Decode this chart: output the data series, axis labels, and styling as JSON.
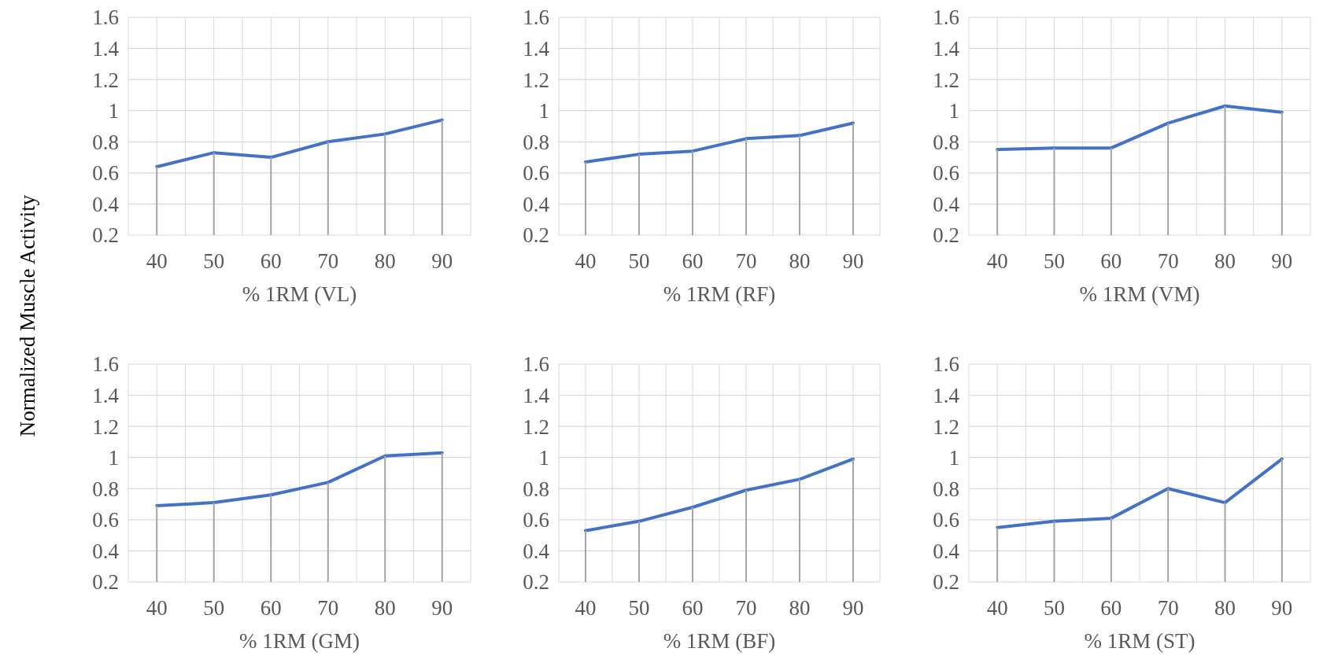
{
  "chart_data": [
    {
      "type": "line",
      "ylabel": "Normalized Muscle Activity",
      "xlabel": "% 1RM (VL)",
      "categories": [
        "40",
        "50",
        "60",
        "70",
        "80",
        "90"
      ],
      "series": [
        {
          "color": "#4472c4",
          "values": [
            0.64,
            0.73,
            0.7,
            0.8,
            0.85,
            0.94
          ]
        },
        {
          "type": "bar",
          "color": "#a6a6a6",
          "values": [
            0.64,
            0.73,
            0.7,
            0.8,
            0.85,
            0.94
          ]
        }
      ],
      "ylim": [
        0.2,
        1.6
      ],
      "yticks": [
        0.2,
        0.4,
        0.6,
        0.8,
        1,
        1.2,
        1.4,
        1.6
      ],
      "grid": true,
      "marker": "none",
      "line_style": "solid"
    },
    {
      "type": "line",
      "xlabel": "% 1RM (RF)",
      "categories": [
        "40",
        "50",
        "60",
        "70",
        "80",
        "90"
      ],
      "series": [
        {
          "color": "#4472c4",
          "values": [
            0.67,
            0.72,
            0.74,
            0.82,
            0.84,
            0.92
          ]
        },
        {
          "type": "bar",
          "color": "#a6a6a6",
          "values": [
            0.67,
            0.72,
            0.74,
            0.82,
            0.84,
            0.92
          ]
        }
      ],
      "ylim": [
        0.2,
        1.6
      ],
      "yticks": [
        0.2,
        0.4,
        0.6,
        0.8,
        1,
        1.2,
        1.4,
        1.6
      ],
      "grid": true,
      "marker": "none",
      "line_style": "solid"
    },
    {
      "type": "line",
      "xlabel": "% 1RM (VM)",
      "categories": [
        "40",
        "50",
        "60",
        "70",
        "80",
        "90"
      ],
      "series": [
        {
          "color": "#4472c4",
          "values": [
            0.75,
            0.76,
            0.76,
            0.92,
            1.03,
            0.99
          ]
        },
        {
          "type": "bar",
          "color": "#a6a6a6",
          "values": [
            0.75,
            0.76,
            0.76,
            0.92,
            1.03,
            0.99
          ]
        }
      ],
      "ylim": [
        0.2,
        1.6
      ],
      "yticks": [
        0.2,
        0.4,
        0.6,
        0.8,
        1,
        1.2,
        1.4,
        1.6
      ],
      "grid": true,
      "marker": "none",
      "line_style": "solid"
    },
    {
      "type": "line",
      "xlabel": "% 1RM (GM)",
      "categories": [
        "40",
        "50",
        "60",
        "70",
        "80",
        "90"
      ],
      "series": [
        {
          "color": "#4472c4",
          "values": [
            0.69,
            0.71,
            0.76,
            0.84,
            1.01,
            1.03
          ]
        },
        {
          "type": "bar",
          "color": "#a6a6a6",
          "values": [
            0.69,
            0.71,
            0.76,
            0.84,
            1.01,
            1.03
          ]
        }
      ],
      "ylim": [
        0.2,
        1.6
      ],
      "yticks": [
        0.2,
        0.4,
        0.6,
        0.8,
        1,
        1.2,
        1.4,
        1.6
      ],
      "grid": true,
      "marker": "none",
      "line_style": "solid"
    },
    {
      "type": "line",
      "xlabel": "% 1RM (BF)",
      "categories": [
        "40",
        "50",
        "60",
        "70",
        "80",
        "90"
      ],
      "series": [
        {
          "color": "#4472c4",
          "values": [
            0.53,
            0.59,
            0.68,
            0.79,
            0.86,
            0.99
          ]
        },
        {
          "type": "bar",
          "color": "#a6a6a6",
          "values": [
            0.53,
            0.59,
            0.68,
            0.79,
            0.86,
            0.99
          ]
        }
      ],
      "ylim": [
        0.2,
        1.6
      ],
      "yticks": [
        0.2,
        0.4,
        0.6,
        0.8,
        1,
        1.2,
        1.4,
        1.6
      ],
      "grid": true,
      "marker": "none",
      "line_style": "solid"
    },
    {
      "type": "line",
      "xlabel": "% 1RM (ST)",
      "categories": [
        "40",
        "50",
        "60",
        "70",
        "80",
        "90"
      ],
      "series": [
        {
          "color": "#4472c4",
          "values": [
            0.55,
            0.59,
            0.61,
            0.8,
            0.71,
            0.99
          ]
        },
        {
          "type": "bar",
          "color": "#a6a6a6",
          "values": [
            0.55,
            0.59,
            0.61,
            0.8,
            0.71,
            0.99
          ]
        }
      ],
      "ylim": [
        0.2,
        1.6
      ],
      "yticks": [
        0.2,
        0.4,
        0.6,
        0.8,
        1,
        1.2,
        1.4,
        1.6
      ],
      "grid": true,
      "marker": "none",
      "line_style": "solid"
    }
  ]
}
